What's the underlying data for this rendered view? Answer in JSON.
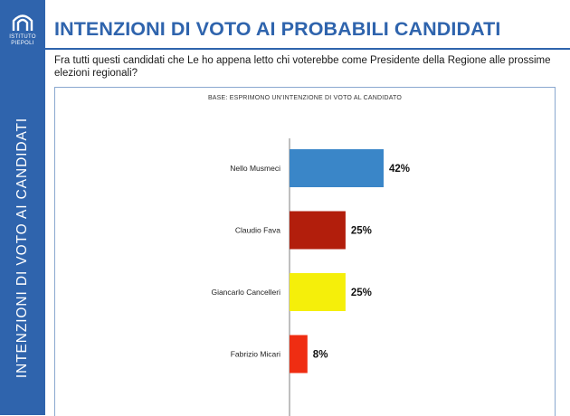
{
  "logo": {
    "line1": "ISTITUTO",
    "line2": "PIEPOLI"
  },
  "sidebar_title": "INTENZIONI DI VOTO AI CANDIDATI",
  "header": {
    "title": "INTENZIONI DI VOTO AI PROBABILI CANDIDATI",
    "question": "Fra tutti questi candidati che Le ho appena letto chi voterebbe come Presidente della Regione alle prossime elezioni regionali?"
  },
  "colors": {
    "brand": "#2f64ad"
  },
  "chart_data": {
    "type": "bar",
    "orientation": "horizontal",
    "subtitle": "BASE: ESPRIMONO UN'INTENZIONE DI VOTO AL CANDIDATO",
    "categories": [
      "Nello Musmeci",
      "Claudio Fava",
      "Giancarlo Cancelleri",
      "Fabrizio Micari"
    ],
    "values": [
      42,
      25,
      25,
      8
    ],
    "value_labels": [
      "42%",
      "25%",
      "25%",
      "8%"
    ],
    "bar_colors": [
      "#3a86c8",
      "#b21e0c",
      "#f5ef0a",
      "#ef2d12"
    ],
    "unit": "%",
    "xlim": [
      0,
      100
    ],
    "grid": false,
    "legend": "none"
  }
}
